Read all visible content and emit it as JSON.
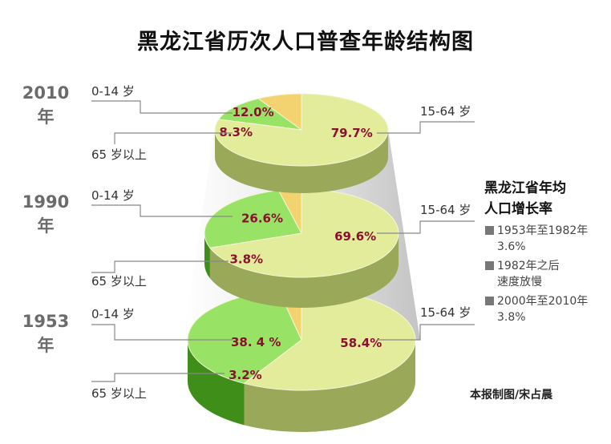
{
  "title": "黑龙江省历次人口普查年龄结构图",
  "chart_data": [
    {
      "type": "pie",
      "year_label": "2010\n年",
      "slices": [
        {
          "label": "15-64 岁",
          "value": 79.7,
          "text": "79.7%",
          "color": "#e3ec9a"
        },
        {
          "label": "0-14 岁",
          "value": 12.0,
          "text": "12.0%",
          "color": "#98e365"
        },
        {
          "label": "65 岁以上",
          "value": 8.3,
          "text": "8.3%",
          "color": "#f2d370"
        }
      ]
    },
    {
      "type": "pie",
      "year_label": "1990\n年",
      "slices": [
        {
          "label": "15-64 岁",
          "value": 69.6,
          "text": "69.6%",
          "color": "#e3ec9a"
        },
        {
          "label": "0-14 岁",
          "value": 26.6,
          "text": "26.6%",
          "color": "#98e365"
        },
        {
          "label": "65 岁以上",
          "value": 3.8,
          "text": "3.8%",
          "color": "#f2d370"
        }
      ]
    },
    {
      "type": "pie",
      "year_label": "1953\n年",
      "slices": [
        {
          "label": "15-64 岁",
          "value": 58.4,
          "text": "58.4%",
          "color": "#e3ec9a"
        },
        {
          "label": "0-14 岁",
          "value": 38.4,
          "text": "38. 4 %",
          "color": "#98e365"
        },
        {
          "label": "65 岁以上",
          "value": 3.2,
          "text": "3.2%",
          "color": "#f2d370"
        }
      ]
    }
  ],
  "side_panel": {
    "title_line1": "黑龙江省年均",
    "title_line2": "人口增长率",
    "notes": [
      {
        "line1": "1953年至1982年",
        "line2": "3.6%"
      },
      {
        "line1": "1982年之后",
        "line2": "速度放慢"
      },
      {
        "line1": "2000年至2010年",
        "line2": "3.8%"
      }
    ]
  },
  "credit": "本报制图/宋占晨"
}
